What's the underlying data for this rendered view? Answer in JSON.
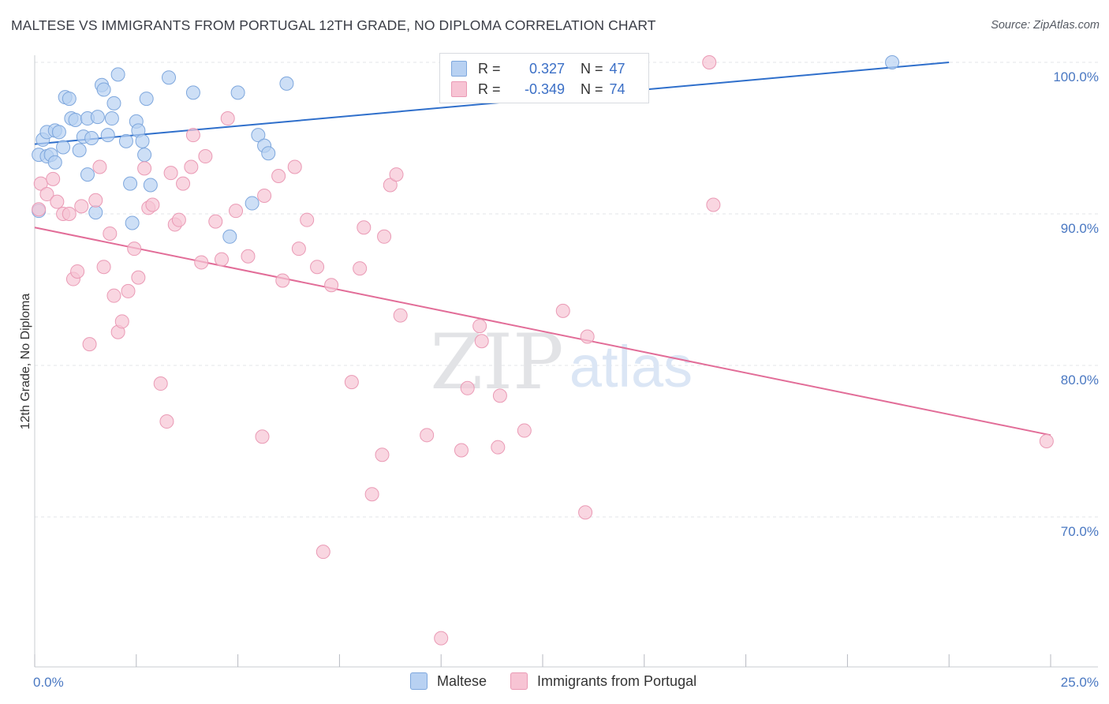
{
  "header": {
    "title": "MALTESE VS IMMIGRANTS FROM PORTUGAL 12TH GRADE, NO DIPLOMA CORRELATION CHART",
    "source": "Source: ZipAtlas.com"
  },
  "watermark": {
    "zip": "ZIP",
    "atlas": "atlas"
  },
  "colors": {
    "blue_fill": "#b8d1f2",
    "blue_stroke": "#7ea7dd",
    "blue_line": "#2f6fcb",
    "pink_fill": "#f7c4d4",
    "pink_stroke": "#ea9ab5",
    "pink_line": "#e26d98",
    "axis_text": "#4a78c2",
    "grid": "#e3e5ea"
  },
  "legend": {
    "rows": [
      {
        "r_label": "R =",
        "r_value": "0.327",
        "n_label": "N =",
        "n_value": "47",
        "series": "blue"
      },
      {
        "r_label": "R =",
        "r_value": "-0.349",
        "n_label": "N =",
        "n_value": "74",
        "series": "pink"
      }
    ]
  },
  "chart_data": {
    "type": "scatter",
    "title": "MALTESE VS IMMIGRANTS FROM PORTUGAL 12TH GRADE, NO DIPLOMA CORRELATION CHART",
    "xlabel": "",
    "ylabel": "12th Grade, No Diploma",
    "xlim": [
      0,
      25
    ],
    "ylim": [
      60.5,
      101.5
    ],
    "x_tick_labels": [
      {
        "value": 0,
        "label": "0.0%"
      },
      {
        "value": 25,
        "label": "25.0%"
      }
    ],
    "y_tick_labels": [
      {
        "value": 100,
        "label": "100.0%"
      },
      {
        "value": 90,
        "label": "90.0%"
      },
      {
        "value": 80,
        "label": "80.0%"
      },
      {
        "value": 70,
        "label": "70.0%"
      }
    ],
    "x_minor_ticks": [
      0,
      2.5,
      5,
      7.5,
      10,
      12.5,
      15,
      17.5,
      20,
      22.5,
      25
    ],
    "grid": true,
    "legend_position": "bottom",
    "series": [
      {
        "name": "Maltese",
        "color": "blue",
        "trend": {
          "x0": 0,
          "y0": 94.6,
          "x1": 22.5,
          "y1": 100.0
        },
        "points": [
          [
            0.1,
            90.2
          ],
          [
            0.1,
            93.9
          ],
          [
            0.2,
            94.9
          ],
          [
            0.3,
            93.8
          ],
          [
            0.3,
            95.4
          ],
          [
            0.4,
            93.9
          ],
          [
            0.5,
            95.5
          ],
          [
            0.5,
            93.4
          ],
          [
            0.6,
            95.4
          ],
          [
            0.7,
            94.4
          ],
          [
            0.75,
            97.7
          ],
          [
            0.85,
            97.6
          ],
          [
            0.9,
            96.3
          ],
          [
            1.0,
            96.2
          ],
          [
            1.1,
            94.2
          ],
          [
            1.2,
            95.1
          ],
          [
            1.3,
            92.6
          ],
          [
            1.3,
            96.3
          ],
          [
            1.4,
            95.0
          ],
          [
            1.5,
            90.1
          ],
          [
            1.55,
            96.4
          ],
          [
            1.65,
            98.5
          ],
          [
            1.7,
            98.2
          ],
          [
            1.8,
            95.2
          ],
          [
            1.9,
            96.3
          ],
          [
            1.95,
            97.3
          ],
          [
            2.05,
            99.2
          ],
          [
            2.25,
            94.8
          ],
          [
            2.35,
            92.0
          ],
          [
            2.4,
            89.4
          ],
          [
            2.5,
            96.1
          ],
          [
            2.55,
            95.5
          ],
          [
            2.65,
            94.8
          ],
          [
            2.7,
            93.9
          ],
          [
            2.75,
            97.6
          ],
          [
            2.85,
            91.9
          ],
          [
            3.3,
            99.0
          ],
          [
            3.9,
            98.0
          ],
          [
            4.8,
            88.5
          ],
          [
            5.0,
            98.0
          ],
          [
            5.35,
            90.7
          ],
          [
            5.5,
            95.2
          ],
          [
            5.65,
            94.5
          ],
          [
            5.75,
            94.0
          ],
          [
            6.2,
            98.6
          ],
          [
            13.9,
            100.0
          ],
          [
            21.1,
            100.0
          ]
        ]
      },
      {
        "name": "Immigrants from Portugal",
        "color": "pink",
        "trend": {
          "x0": 0,
          "y0": 89.1,
          "x1": 25,
          "y1": 75.4
        },
        "points": [
          [
            0.1,
            90.3
          ],
          [
            0.15,
            92.0
          ],
          [
            0.3,
            91.3
          ],
          [
            0.45,
            92.3
          ],
          [
            0.55,
            90.8
          ],
          [
            0.7,
            90.0
          ],
          [
            0.85,
            90.0
          ],
          [
            0.95,
            85.7
          ],
          [
            1.05,
            86.2
          ],
          [
            1.15,
            90.5
          ],
          [
            1.35,
            81.4
          ],
          [
            1.5,
            90.9
          ],
          [
            1.6,
            93.1
          ],
          [
            1.7,
            86.5
          ],
          [
            1.85,
            88.7
          ],
          [
            1.95,
            84.6
          ],
          [
            2.05,
            82.2
          ],
          [
            2.15,
            82.9
          ],
          [
            2.3,
            84.9
          ],
          [
            2.45,
            87.7
          ],
          [
            2.55,
            85.8
          ],
          [
            2.7,
            93.0
          ],
          [
            2.8,
            90.4
          ],
          [
            2.9,
            90.6
          ],
          [
            3.1,
            78.8
          ],
          [
            3.25,
            76.3
          ],
          [
            3.35,
            92.7
          ],
          [
            3.45,
            89.3
          ],
          [
            3.55,
            89.6
          ],
          [
            3.65,
            92.0
          ],
          [
            3.85,
            93.1
          ],
          [
            3.9,
            95.2
          ],
          [
            4.1,
            86.8
          ],
          [
            4.2,
            93.8
          ],
          [
            4.45,
            89.5
          ],
          [
            4.6,
            87.0
          ],
          [
            4.75,
            96.3
          ],
          [
            4.95,
            90.2
          ],
          [
            5.25,
            87.2
          ],
          [
            5.6,
            75.3
          ],
          [
            5.65,
            91.2
          ],
          [
            6.0,
            92.5
          ],
          [
            6.1,
            85.6
          ],
          [
            6.4,
            93.1
          ],
          [
            6.5,
            87.7
          ],
          [
            6.7,
            89.6
          ],
          [
            6.95,
            86.5
          ],
          [
            7.1,
            67.7
          ],
          [
            7.3,
            85.3
          ],
          [
            7.8,
            78.9
          ],
          [
            8.0,
            86.4
          ],
          [
            8.1,
            89.1
          ],
          [
            8.3,
            71.5
          ],
          [
            8.55,
            74.1
          ],
          [
            8.6,
            88.5
          ],
          [
            8.75,
            91.9
          ],
          [
            8.9,
            92.6
          ],
          [
            9.0,
            83.3
          ],
          [
            9.65,
            75.4
          ],
          [
            10.0,
            62.0
          ],
          [
            10.5,
            74.4
          ],
          [
            10.65,
            78.5
          ],
          [
            10.95,
            82.6
          ],
          [
            11.0,
            81.6
          ],
          [
            11.4,
            74.6
          ],
          [
            11.45,
            78.0
          ],
          [
            12.05,
            75.7
          ],
          [
            13.0,
            83.6
          ],
          [
            13.55,
            70.3
          ],
          [
            13.6,
            81.9
          ],
          [
            14.1,
            100.0
          ],
          [
            16.6,
            100.0
          ],
          [
            16.7,
            90.6
          ],
          [
            24.9,
            75.0
          ]
        ]
      }
    ]
  },
  "bottom_legend": {
    "items": [
      {
        "label": "Maltese",
        "series": "blue"
      },
      {
        "label": "Immigrants from Portugal",
        "series": "pink"
      }
    ]
  }
}
